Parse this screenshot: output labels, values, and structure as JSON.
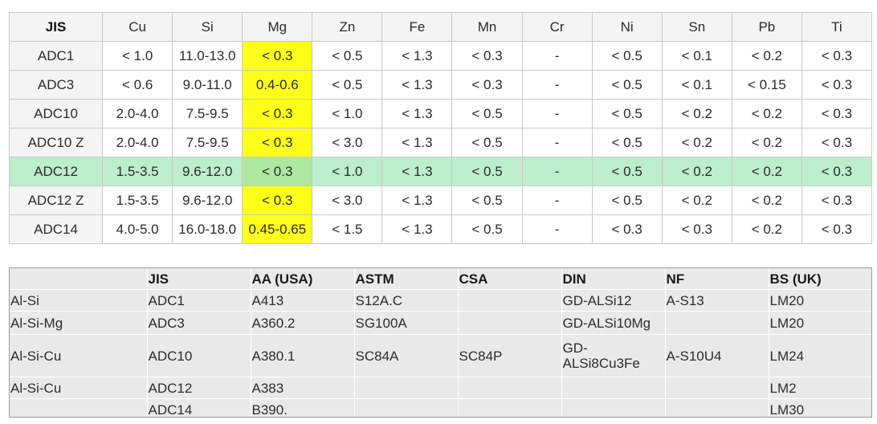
{
  "composition": {
    "headers": [
      "JIS",
      "Cu",
      "Si",
      "Mg",
      "Zn",
      "Fe",
      "Mn",
      "Cr",
      "Ni",
      "Sn",
      "Pb",
      "Ti"
    ],
    "highlight_column": "Mg",
    "highlight_column_color": "#ffff1a",
    "highlight_row": "ADC12",
    "highlight_row_color": "#bdeecb",
    "rows": [
      [
        "ADC1",
        "< 1.0",
        "11.0-13.0",
        "< 0.3",
        "< 0.5",
        "< 1.3",
        "< 0.3",
        "-",
        "< 0.5",
        "< 0.1",
        "< 0.2",
        "< 0.3"
      ],
      [
        "ADC3",
        "< 0.6",
        "9.0-11.0",
        "0.4-0.6",
        "< 0.5",
        "< 1.3",
        "< 0.3",
        "-",
        "< 0.5",
        "< 0.1",
        "< 0.15",
        "< 0.3"
      ],
      [
        "ADC10",
        "2.0-4.0",
        "7.5-9.5",
        "< 0.3",
        "< 1.0",
        "< 1.3",
        "< 0.5",
        "-",
        "< 0.5",
        "< 0.2",
        "< 0.2",
        "< 0.3"
      ],
      [
        "ADC10 Z",
        "2.0-4.0",
        "7.5-9.5",
        "< 0.3",
        "< 3.0",
        "< 1.3",
        "< 0.5",
        "-",
        "< 0.5",
        "< 0.2",
        "< 0.2",
        "< 0.3"
      ],
      [
        "ADC12",
        "1.5-3.5",
        "9.6-12.0",
        "< 0.3",
        "< 1.0",
        "< 1.3",
        "< 0.5",
        "-",
        "< 0.5",
        "< 0.2",
        "< 0.2",
        "< 0.3"
      ],
      [
        "ADC12 Z",
        "1.5-3.5",
        "9.6-12.0",
        "< 0.3",
        "< 3.0",
        "< 1.3",
        "< 0.5",
        "-",
        "< 0.5",
        "< 0.2",
        "< 0.2",
        "< 0.3"
      ],
      [
        "ADC14",
        "4.0-5.0",
        "16.0-18.0",
        "0.45-0.65",
        "< 1.5",
        "< 1.3",
        "< 0.5",
        "-",
        "< 0.3",
        "< 0.3",
        "< 0.2",
        "< 0.3"
      ]
    ]
  },
  "equivalents": {
    "headers": [
      "",
      "JIS",
      "AA (USA)",
      "ASTM",
      "CSA",
      "DIN",
      "NF",
      "BS (UK)"
    ],
    "rows": [
      [
        "Al-Si",
        "ADC1",
        "A413",
        "S12A.C",
        "",
        "GD-ALSi12",
        "A-S13",
        "LM20"
      ],
      [
        "Al-Si-Mg",
        "ADC3",
        "A360.2",
        "SG100A",
        "",
        "GD-ALSi10Mg",
        "",
        "LM20"
      ],
      [
        "Al-Si-Cu",
        "ADC10",
        "A380.1",
        "SC84A",
        "SC84P",
        "GD-\nALSi8Cu3Fe",
        "A-S10U4",
        "LM24"
      ],
      [
        "Al-Si-Cu",
        "ADC12",
        "A383",
        "",
        "",
        "",
        "",
        "LM2"
      ],
      [
        "",
        "ADC14",
        "B390.",
        "",
        "",
        "",
        "",
        "LM30"
      ]
    ]
  }
}
